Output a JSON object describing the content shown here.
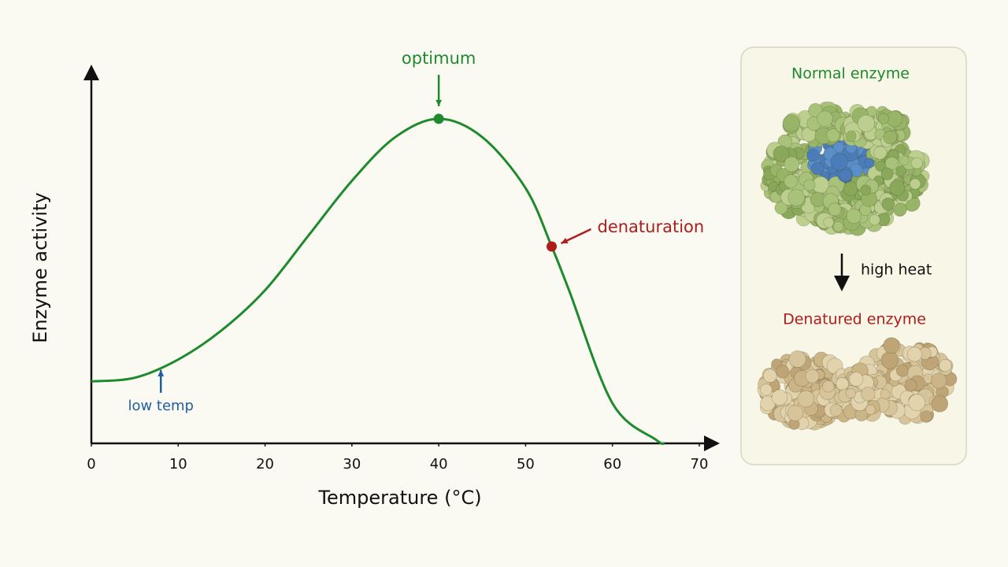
{
  "chart_data": {
    "type": "line",
    "x_label": "Temperature (°C)",
    "y_label": "Enzyme activity",
    "x": [
      0,
      5,
      10,
      15,
      20,
      25,
      30,
      35,
      40,
      45,
      50,
      53,
      55,
      60,
      65,
      66
    ],
    "values": [
      17,
      18,
      23,
      31,
      42,
      57,
      72,
      84,
      89,
      84,
      70,
      54,
      42,
      11,
      1,
      0
    ],
    "color": "#1e8a2e",
    "xlim": [
      0,
      70
    ],
    "xticks": [
      0,
      10,
      20,
      30,
      40,
      50,
      60,
      70
    ],
    "ylim": [
      0,
      100
    ],
    "annotations": [
      {
        "text": "optimum",
        "x": 40,
        "y": 89,
        "color": "#1e8a2e",
        "marker": true
      },
      {
        "text": "denaturation",
        "x": 53,
        "y": 54,
        "color": "#b01c1c",
        "marker": true
      },
      {
        "text": "low temp",
        "x": 8,
        "y": 21,
        "color": "#1f5fa0",
        "marker": false
      }
    ]
  },
  "panel": {
    "top_label": "Normal enzyme",
    "arrow_label": "high heat",
    "bottom_label": "Denatured enzyme"
  }
}
